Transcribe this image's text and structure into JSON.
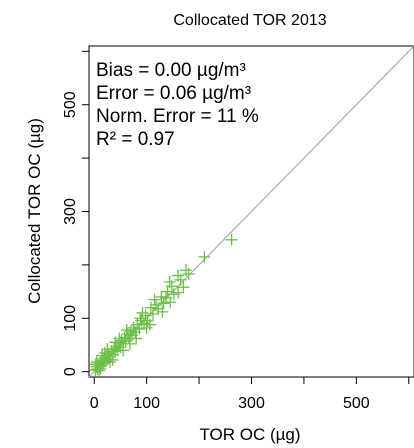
{
  "chart_data": {
    "type": "scatter",
    "title": "Collocated TOR 2013",
    "xlabel": "TOR OC (µg)",
    "ylabel": "Collocated TOR OC (µg)",
    "xlim": [
      -10,
      610
    ],
    "ylim": [
      -10,
      610
    ],
    "xticks": [
      0,
      100,
      300,
      500
    ],
    "yticks": [
      0,
      100,
      300,
      500
    ],
    "grid": false,
    "reference_line": "1:1",
    "marker": "+",
    "marker_color": "#6ec04a",
    "line_color": "#aaaaaa",
    "annotations": [
      "Bias = 0.00 µg/m³",
      "Error = 0.06 µg/m³",
      "Norm. Error = 11 %",
      "R² = 0.97"
    ],
    "points": [
      [
        262,
        247
      ],
      [
        210,
        215
      ],
      [
        180,
        183
      ],
      [
        175,
        190
      ],
      [
        165,
        172
      ],
      [
        160,
        180
      ],
      [
        152,
        145
      ],
      [
        148,
        160
      ],
      [
        145,
        130
      ],
      [
        140,
        150
      ],
      [
        137,
        138
      ],
      [
        132,
        128
      ],
      [
        128,
        140
      ],
      [
        122,
        118
      ],
      [
        118,
        125
      ],
      [
        112,
        108
      ],
      [
        108,
        120
      ],
      [
        102,
        95
      ],
      [
        98,
        105
      ],
      [
        95,
        90
      ],
      [
        90,
        96
      ],
      [
        86,
        80
      ],
      [
        82,
        88
      ],
      [
        78,
        74
      ],
      [
        75,
        82
      ],
      [
        72,
        68
      ],
      [
        70,
        76
      ],
      [
        66,
        62
      ],
      [
        64,
        70
      ],
      [
        60,
        57
      ],
      [
        58,
        64
      ],
      [
        55,
        52
      ],
      [
        52,
        58
      ],
      [
        50,
        46
      ],
      [
        48,
        53
      ],
      [
        45,
        40
      ],
      [
        42,
        47
      ],
      [
        40,
        38
      ],
      [
        38,
        43
      ],
      [
        35,
        32
      ],
      [
        33,
        38
      ],
      [
        30,
        28
      ],
      [
        28,
        33
      ],
      [
        26,
        24
      ],
      [
        24,
        29
      ],
      [
        22,
        20
      ],
      [
        20,
        25
      ],
      [
        18,
        16
      ],
      [
        16,
        21
      ],
      [
        14,
        12
      ],
      [
        12,
        17
      ],
      [
        10,
        9
      ],
      [
        8,
        13
      ],
      [
        6,
        5
      ],
      [
        4,
        9
      ],
      [
        2,
        3
      ],
      [
        5,
        18
      ],
      [
        12,
        5
      ],
      [
        20,
        35
      ],
      [
        30,
        18
      ],
      [
        40,
        55
      ],
      [
        55,
        40
      ],
      [
        62,
        78
      ],
      [
        80,
        62
      ],
      [
        100,
        82
      ],
      [
        115,
        135
      ],
      [
        130,
        112
      ],
      [
        160,
        148
      ],
      [
        170,
        158
      ],
      [
        144,
        168
      ],
      [
        106,
        88
      ],
      [
        88,
        100
      ],
      [
        68,
        52
      ],
      [
        25,
        42
      ],
      [
        15,
        30
      ],
      [
        35,
        22
      ],
      [
        3,
        14
      ],
      [
        9,
        2
      ],
      [
        48,
        62
      ],
      [
        92,
        110
      ]
    ]
  }
}
